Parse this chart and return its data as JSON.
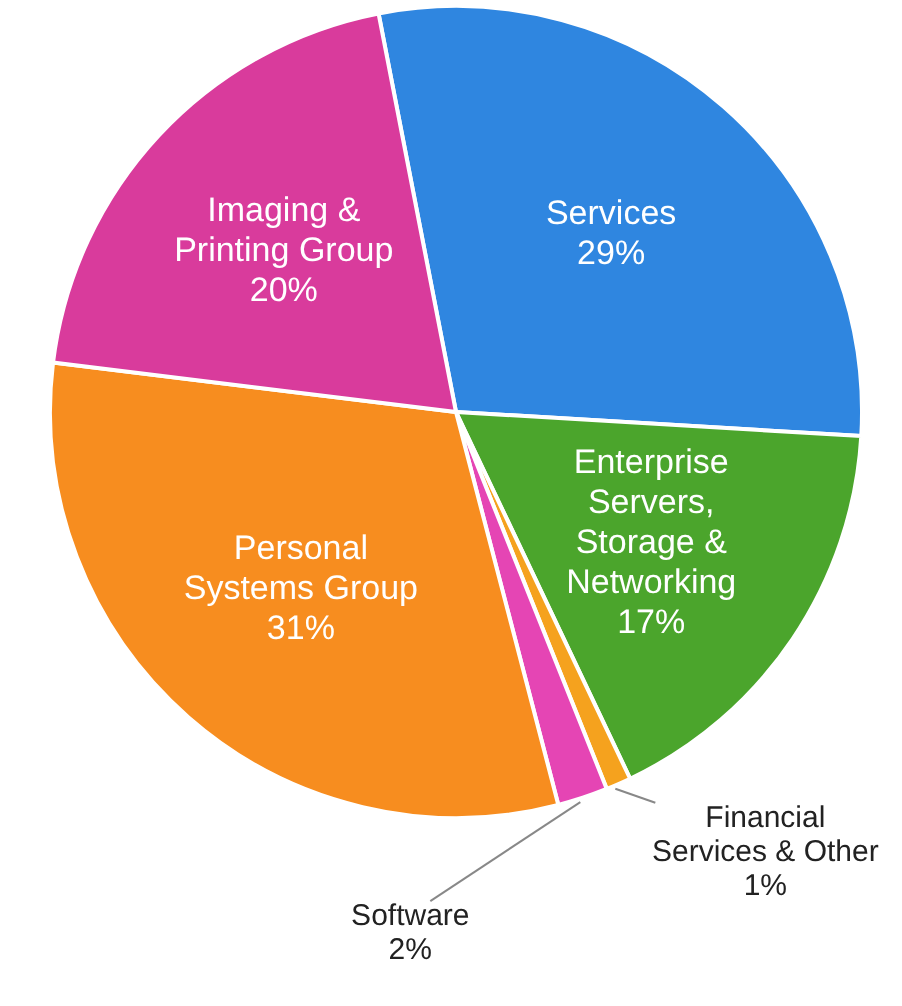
{
  "chart_data": {
    "type": "pie",
    "categories": [
      "Services",
      "Enterprise Servers, Storage & Networking",
      "Financial Services & Other",
      "Software",
      "Personal Systems Group",
      "Imaging & Printing Group"
    ],
    "values": [
      29,
      17,
      1,
      2,
      31,
      20
    ],
    "value_labels": [
      "29%",
      "17%",
      "1%",
      "2%",
      "31%",
      "20%"
    ],
    "colors": [
      "#2f86e0",
      "#4ba52c",
      "#f5a21e",
      "#e545b4",
      "#f78d1f",
      "#d93b9c"
    ],
    "legend": false
  }
}
